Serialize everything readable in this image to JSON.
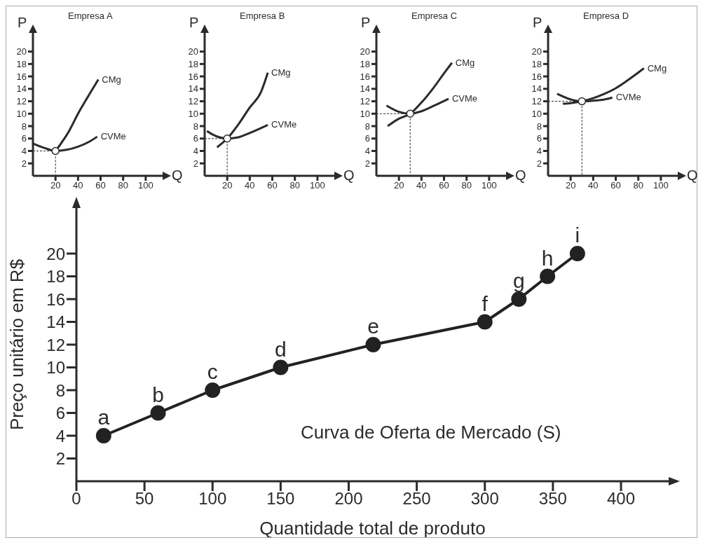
{
  "chart_data": [
    {
      "type": "line",
      "title": "Empresa A",
      "xlabel": "Q",
      "ylabel": "P",
      "xlim": [
        0,
        115
      ],
      "ylim": [
        0,
        23
      ],
      "xticks": [
        20,
        40,
        60,
        80,
        100
      ],
      "yticks": [
        2,
        4,
        6,
        8,
        10,
        12,
        14,
        16,
        18,
        20
      ],
      "marker": "none",
      "series": [
        {
          "name": "CMg",
          "color": "#2b2b2b",
          "x": [
            18,
            20,
            26,
            32,
            40,
            48,
            58
          ],
          "values": [
            3.6,
            4,
            5.5,
            7.2,
            10,
            12.5,
            15.5
          ]
        },
        {
          "name": "CVMe",
          "color": "#2b2b2b",
          "x": [
            0,
            10,
            20,
            30,
            40,
            50,
            57
          ],
          "values": [
            5.2,
            4.5,
            4,
            4.2,
            4.7,
            5.5,
            6.3
          ]
        },
        {
          "type": "line",
          "line_style": "dashed",
          "color": "#2b2b2b",
          "x": [
            0,
            20,
            20
          ],
          "values": [
            4,
            4,
            0
          ]
        },
        {
          "type": "scatter",
          "marker": "circle",
          "color": "#ffffff",
          "x": [
            20
          ],
          "values": [
            4
          ]
        }
      ]
    },
    {
      "type": "line",
      "title": "Empresa B",
      "xlabel": "Q",
      "ylabel": "P",
      "xlim": [
        0,
        115
      ],
      "ylim": [
        0,
        23
      ],
      "xticks": [
        20,
        40,
        60,
        80,
        100
      ],
      "yticks": [
        2,
        4,
        6,
        8,
        10,
        12,
        14,
        16,
        18,
        20
      ],
      "marker": "none",
      "series": [
        {
          "name": "CMg",
          "color": "#2b2b2b",
          "x": [
            11,
            20,
            30,
            40,
            50,
            56
          ],
          "values": [
            4.6,
            6,
            8.3,
            11,
            13.5,
            16.6
          ]
        },
        {
          "name": "CVMe",
          "color": "#2b2b2b",
          "x": [
            2,
            10,
            20,
            30,
            40,
            56
          ],
          "values": [
            7.2,
            6.4,
            6,
            6.2,
            6.9,
            8.2
          ]
        },
        {
          "type": "line",
          "line_style": "dashed",
          "color": "#2b2b2b",
          "x": [
            0,
            20,
            20
          ],
          "values": [
            6,
            6,
            0
          ]
        },
        {
          "type": "scatter",
          "marker": "circle",
          "color": "#ffffff",
          "x": [
            20
          ],
          "values": [
            6
          ]
        }
      ]
    },
    {
      "type": "line",
      "title": "Empresa C",
      "xlabel": "Q",
      "ylabel": "P",
      "xlim": [
        0,
        115
      ],
      "ylim": [
        0,
        23
      ],
      "xticks": [
        20,
        40,
        60,
        80,
        100
      ],
      "yticks": [
        2,
        4,
        6,
        8,
        10,
        12,
        14,
        16,
        18,
        20
      ],
      "marker": "none",
      "series": [
        {
          "name": "CMg",
          "color": "#2b2b2b",
          "x": [
            10,
            20,
            30,
            40,
            50,
            60,
            67
          ],
          "values": [
            8,
            9.2,
            10,
            11.8,
            14,
            16.5,
            18.2
          ]
        },
        {
          "name": "CVMe",
          "color": "#2b2b2b",
          "x": [
            9,
            20,
            30,
            40,
            50,
            64
          ],
          "values": [
            11.3,
            10.3,
            10,
            10.4,
            11.2,
            12.4
          ]
        },
        {
          "type": "line",
          "line_style": "dashed",
          "color": "#2b2b2b",
          "x": [
            0,
            30,
            30
          ],
          "values": [
            10,
            10,
            0
          ]
        },
        {
          "type": "scatter",
          "marker": "circle",
          "color": "#ffffff",
          "x": [
            30
          ],
          "values": [
            10
          ]
        }
      ]
    },
    {
      "type": "line",
      "title": "Empresa D",
      "xlabel": "Q",
      "ylabel": "P",
      "xlim": [
        0,
        115
      ],
      "ylim": [
        0,
        23
      ],
      "xticks": [
        20,
        40,
        60,
        80,
        100
      ],
      "yticks": [
        2,
        4,
        6,
        8,
        10,
        12,
        14,
        16,
        18,
        20
      ],
      "marker": "none",
      "series": [
        {
          "name": "CMg",
          "color": "#2b2b2b",
          "x": [
            13,
            20,
            30,
            40,
            50,
            60,
            70,
            85
          ],
          "values": [
            11.6,
            11.7,
            12,
            12.5,
            13.2,
            14.1,
            15.3,
            17.3
          ]
        },
        {
          "name": "CVMe",
          "color": "#2b2b2b",
          "x": [
            8,
            20,
            30,
            40,
            50,
            57
          ],
          "values": [
            13.2,
            12.3,
            12,
            12.1,
            12.3,
            12.6
          ]
        },
        {
          "type": "line",
          "line_style": "dashed",
          "color": "#2b2b2b",
          "x": [
            0,
            30,
            30
          ],
          "values": [
            12,
            12,
            0
          ]
        },
        {
          "type": "scatter",
          "marker": "circle",
          "color": "#ffffff",
          "x": [
            30
          ],
          "values": [
            12
          ]
        }
      ]
    },
    {
      "type": "line",
      "xlabel": "Quantidade total de produto",
      "ylabel": "Preço unitário em R$",
      "xlim": [
        0,
        435
      ],
      "ylim": [
        0,
        24
      ],
      "xticks": [
        0,
        50,
        100,
        150,
        200,
        250,
        300,
        350,
        400
      ],
      "yticks": [
        2,
        4,
        6,
        8,
        10,
        12,
        14,
        16,
        18,
        20
      ],
      "marker": "circle",
      "series": [
        {
          "color": "#222222",
          "x": [
            20,
            60,
            100,
            150,
            218,
            300,
            325,
            346,
            368
          ],
          "values": [
            4,
            6,
            8,
            10,
            12,
            14,
            16,
            18,
            20
          ]
        }
      ],
      "annotations": [
        {
          "text": "a",
          "x": 20,
          "y": 4
        },
        {
          "text": "b",
          "x": 60,
          "y": 6
        },
        {
          "text": "c",
          "x": 100,
          "y": 8
        },
        {
          "text": "d",
          "x": 150,
          "y": 10
        },
        {
          "text": "e",
          "x": 218,
          "y": 12
        },
        {
          "text": "f",
          "x": 300,
          "y": 14
        },
        {
          "text": "g",
          "x": 325,
          "y": 16
        },
        {
          "text": "h",
          "x": 346,
          "y": 18
        },
        {
          "text": "i",
          "x": 368,
          "y": 20
        },
        "Curva de Oferta de Mercado (S)"
      ]
    }
  ]
}
